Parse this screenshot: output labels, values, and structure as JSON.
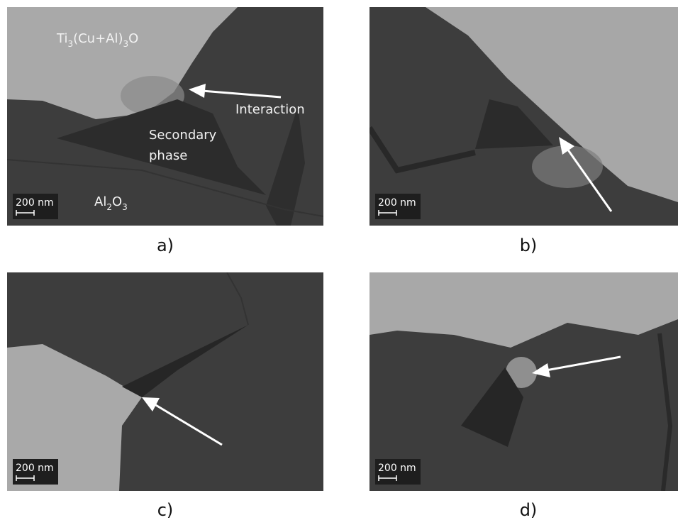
{
  "panels": [
    {
      "label": "a)",
      "scale_bar": "200 nm",
      "annotations": {
        "top_phase": [
          "Ti",
          "3",
          "(Cu+Al)",
          "3",
          "O"
        ],
        "arrow_label": "Interaction",
        "secondary": [
          "Secondary",
          "phase"
        ],
        "bottom_phase": [
          "Al",
          "2",
          "O",
          "3"
        ]
      }
    },
    {
      "label": "b)",
      "scale_bar": "200 nm"
    },
    {
      "label": "c)",
      "scale_bar": "200 nm"
    },
    {
      "label": "d)",
      "scale_bar": "200 nm"
    }
  ]
}
